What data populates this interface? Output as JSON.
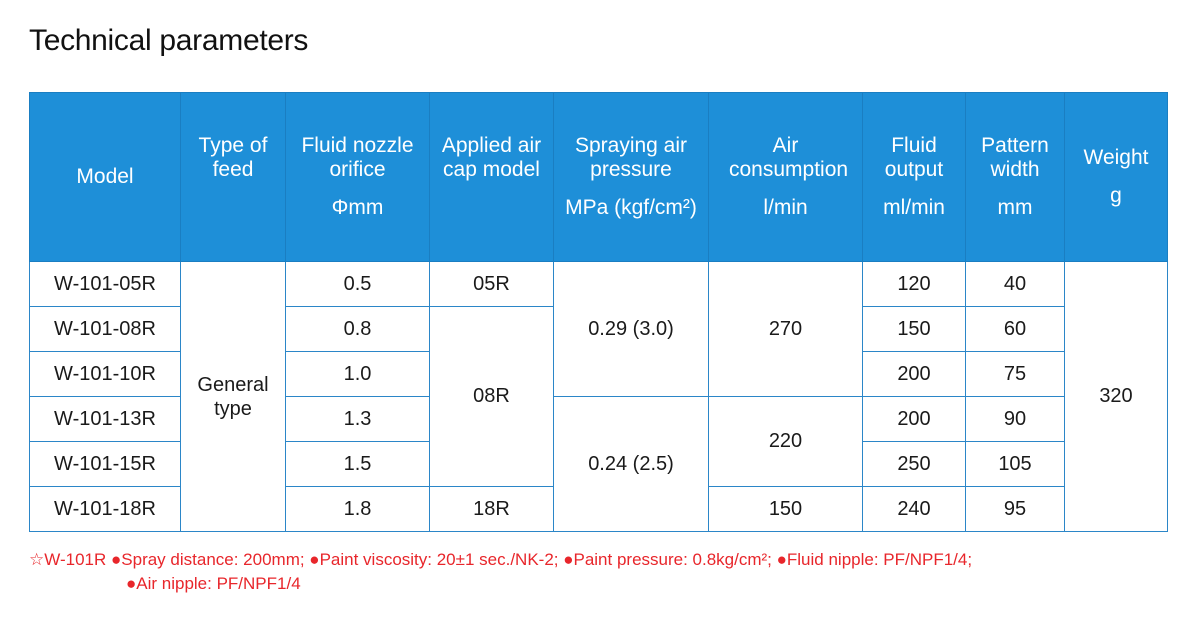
{
  "title": "Technical parameters",
  "table": {
    "headers": {
      "model": "Model",
      "feed": "Type of feed",
      "nozzle": "Fluid nozzle orifice",
      "nozzle_unit": "Φmm",
      "aircap": "Applied air cap model",
      "pressure": "Spraying air pressure",
      "pressure_unit": "MPa (kgf/cm²)",
      "air": "Air consumption",
      "air_unit": "l/min",
      "fluid": "Fluid output",
      "fluid_unit": "ml/min",
      "pattern": "Pattern width",
      "pattern_unit": "mm",
      "weight": "Weight",
      "weight_unit": "g"
    },
    "feed_type": "General type",
    "weight": "320",
    "aircap": {
      "r1": "05R",
      "r2_5": "08R",
      "r6": "18R"
    },
    "pressure": {
      "r1_3": "0.29 (3.0)",
      "r4_6": "0.24 (2.5)"
    },
    "air": {
      "r1_3": "270",
      "r4_5": "220",
      "r6": "150"
    },
    "rows": [
      {
        "model": "W-101-05R",
        "nozzle": "0.5",
        "fluid": "120",
        "pattern": "40"
      },
      {
        "model": "W-101-08R",
        "nozzle": "0.8",
        "fluid": "150",
        "pattern": "60"
      },
      {
        "model": "W-101-10R",
        "nozzle": "1.0",
        "fluid": "200",
        "pattern": "75"
      },
      {
        "model": "W-101-13R",
        "nozzle": "1.3",
        "fluid": "200",
        "pattern": "90"
      },
      {
        "model": "W-101-15R",
        "nozzle": "1.5",
        "fluid": "250",
        "pattern": "105"
      },
      {
        "model": "W-101-18R",
        "nozzle": "1.8",
        "fluid": "240",
        "pattern": "95"
      }
    ]
  },
  "notes": {
    "line1": "☆W-101R ●Spray distance: 200mm; ●Paint viscosity: 20±1 sec./NK-2; ●Paint pressure: 0.8kg/cm²; ●Fluid nipple: PF/NPF1/4;",
    "line2": "●Air nipple: PF/NPF1/4"
  }
}
